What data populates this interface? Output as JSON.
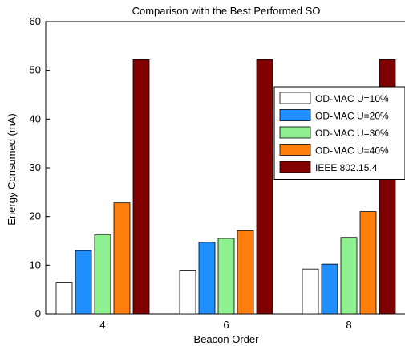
{
  "chart_data": {
    "type": "bar",
    "title": "Comparison with the Best Performed SO",
    "xlabel": "Beacon Order",
    "ylabel": "Energy Consumed (mA)",
    "categories": [
      "4",
      "6",
      "8"
    ],
    "ylim": [
      0,
      60
    ],
    "yticks": [
      0,
      10,
      20,
      30,
      40,
      50,
      60
    ],
    "grid": false,
    "legend_position": "right",
    "series": [
      {
        "name": "OD-MAC U=10%",
        "color": "#ffffff",
        "values": [
          6.5,
          9.0,
          9.2
        ]
      },
      {
        "name": "OD-MAC U=20%",
        "color": "#1f8fff",
        "values": [
          13.0,
          14.7,
          10.2
        ]
      },
      {
        "name": "OD-MAC U=30%",
        "color": "#8ef08e",
        "values": [
          16.3,
          15.5,
          15.7
        ]
      },
      {
        "name": "OD-MAC U=40%",
        "color": "#ff7f0e",
        "values": [
          22.8,
          17.1,
          21.0
        ]
      },
      {
        "name": "IEEE 802.15.4",
        "color": "#800000",
        "values": [
          52.2,
          52.2,
          52.2
        ]
      }
    ]
  }
}
